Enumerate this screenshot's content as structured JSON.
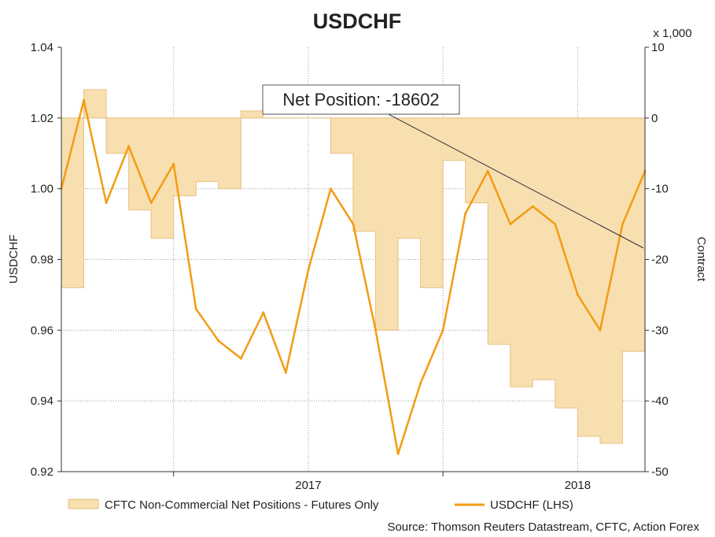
{
  "chart_data": {
    "type": "area+line",
    "title": "USDCHF",
    "left_axis": {
      "label": "USDCHF",
      "ylim": [
        0.92,
        1.04
      ],
      "ticks": [
        "1.04",
        "1.02",
        "1.00",
        "0.98",
        "0.96",
        "0.94",
        "0.92"
      ]
    },
    "right_axis": {
      "label": "Contract",
      "multiplier": "x 1,000",
      "ylim": [
        -50,
        10
      ],
      "ticks": [
        "10",
        "0",
        "-10",
        "-20",
        "-30",
        "-40",
        "-50"
      ]
    },
    "x_axis": {
      "ticks": [
        "2017",
        "2018"
      ],
      "range": [
        "2016-08",
        "2018-10"
      ]
    },
    "grid": true,
    "legend_position": "bottom",
    "annotation": {
      "text": "Net Position: -18602",
      "points_to": {
        "x": "2018-10",
        "value": -18.602
      }
    },
    "source": "Source: Thomson Reuters Datastream, CFTC, Action Forex",
    "colors": {
      "area_fill": "#f8dfb0",
      "area_stroke": "#e8c080",
      "line": "#f39c12",
      "grid": "#9a9a9a"
    },
    "series": [
      {
        "name": "CFTC Non-Commercial Net Positions - Futures Only",
        "axis": "right",
        "style": "step-area",
        "x": [
          "2016-08",
          "2016-09",
          "2016-10",
          "2016-11",
          "2016-12",
          "2017-01",
          "2017-02",
          "2017-03",
          "2017-04",
          "2017-05",
          "2017-06",
          "2017-07",
          "2017-08",
          "2017-09",
          "2017-10",
          "2017-11",
          "2017-12",
          "2018-01",
          "2018-02",
          "2018-03",
          "2018-04",
          "2018-05",
          "2018-06",
          "2018-07",
          "2018-08",
          "2018-09",
          "2018-10"
        ],
        "values": [
          -24,
          4,
          -5,
          -13,
          -17,
          -11,
          -9,
          -10,
          1,
          0,
          0,
          0,
          -5,
          -16,
          -30,
          -17,
          -24,
          -6,
          -12,
          -32,
          -38,
          -37,
          -41,
          -45,
          -46,
          -33,
          -18.6
        ]
      },
      {
        "name": "USDCHF (LHS)",
        "axis": "left",
        "style": "line",
        "x": [
          "2016-08",
          "2016-09",
          "2016-10",
          "2016-11",
          "2016-12",
          "2017-01",
          "2017-02",
          "2017-03",
          "2017-04",
          "2017-05",
          "2017-06",
          "2017-07",
          "2017-08",
          "2017-09",
          "2017-10",
          "2017-11",
          "2017-12",
          "2018-01",
          "2018-02",
          "2018-03",
          "2018-04",
          "2018-05",
          "2018-06",
          "2018-07",
          "2018-08",
          "2018-09",
          "2018-10"
        ],
        "values": [
          1.0,
          1.025,
          0.996,
          1.012,
          0.996,
          1.007,
          0.966,
          0.957,
          0.952,
          0.965,
          0.948,
          0.977,
          1.0,
          0.99,
          0.96,
          0.925,
          0.945,
          0.96,
          0.993,
          1.005,
          0.99,
          0.995,
          0.99,
          0.97,
          0.96,
          0.99,
          1.005
        ]
      }
    ]
  }
}
